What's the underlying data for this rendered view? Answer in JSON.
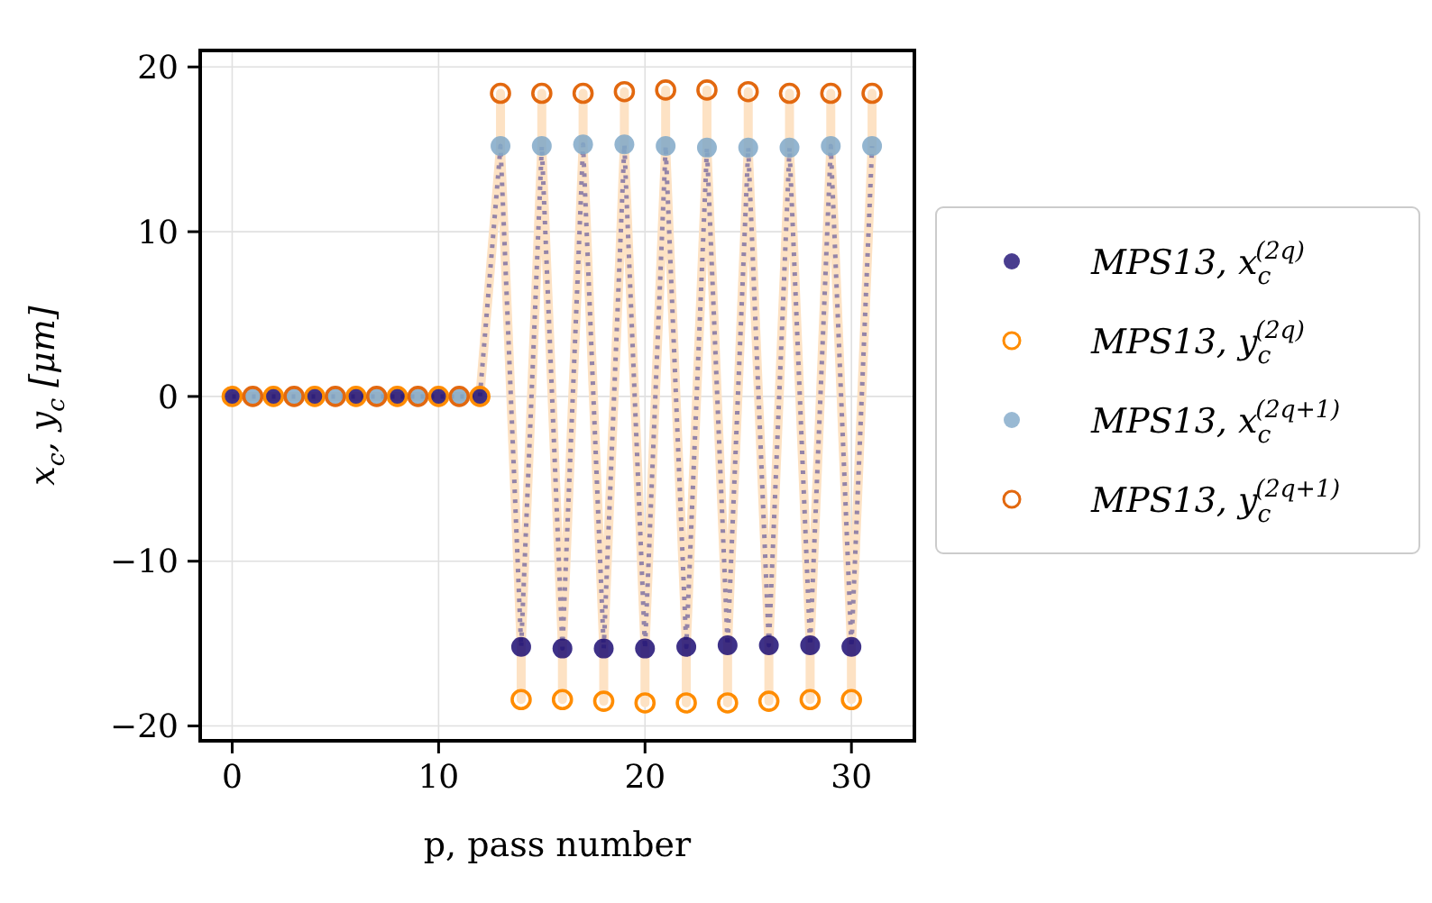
{
  "chart_data": {
    "type": "scatter",
    "xlabel": "p, pass number",
    "ylabel": "x$_{c}$, y$_{c}$ [μm]",
    "xlim": [
      -1.55,
      33.05
    ],
    "ylim": [
      -20.9,
      21
    ],
    "xticks": [
      0,
      10,
      20,
      30
    ],
    "yticks": [
      {
        "value": -20,
        "label": "−20"
      },
      {
        "value": -10,
        "label": "−10"
      },
      0,
      10,
      20
    ],
    "grid": true,
    "legend": "right",
    "series": [
      {
        "type": "line",
        "color": "#fde2c4",
        "line_style": "solid",
        "marker": "none",
        "x": [
          0,
          12,
          13,
          13,
          13,
          14,
          14,
          14,
          15,
          15,
          15,
          16,
          16,
          16,
          17,
          17,
          17,
          18,
          18,
          18,
          19,
          19,
          19,
          20,
          20,
          20,
          21,
          21,
          21,
          22,
          22,
          22,
          23,
          23,
          23,
          24,
          24,
          24,
          25,
          25,
          25,
          26,
          26,
          26,
          27,
          27,
          27,
          28,
          28,
          28,
          29,
          29,
          29,
          30,
          30,
          30,
          31,
          31
        ],
        "values": [
          0,
          0,
          15.2,
          18.4,
          15.2,
          -15.2,
          -18.4,
          -15.2,
          15.2,
          18.4,
          15.2,
          -15.3,
          -18.4,
          -15.3,
          15.3,
          18.4,
          15.3,
          -15.3,
          -18.5,
          -15.3,
          15.3,
          18.5,
          15.3,
          -15.3,
          -18.6,
          -15.3,
          15.2,
          18.6,
          15.2,
          -15.2,
          -18.6,
          -15.2,
          15.1,
          18.6,
          15.1,
          -15.1,
          -18.6,
          -15.1,
          15.1,
          18.5,
          15.1,
          -15.1,
          -18.5,
          -15.1,
          15.1,
          18.4,
          15.1,
          -15.1,
          -18.4,
          -15.1,
          15.2,
          18.4,
          15.2,
          -15.2,
          -18.4,
          -15.2,
          15.2,
          18.4
        ]
      },
      {
        "type": "line",
        "color": "#9484a8",
        "line_style": "dotted",
        "marker": "none",
        "x": [
          0,
          12,
          13,
          14,
          15,
          16,
          17,
          18,
          19,
          20,
          21,
          22,
          23,
          24,
          25,
          26,
          27,
          28,
          29,
          30,
          31
        ],
        "values": [
          0,
          0,
          15.2,
          -15.2,
          15.2,
          -15.3,
          15.3,
          -15.3,
          15.3,
          -15.3,
          15.2,
          -15.2,
          15.1,
          -15.1,
          15.1,
          -15.1,
          15.1,
          -15.1,
          15.2,
          -15.2,
          15.2
        ]
      },
      {
        "name": "MPS13, x$_{c}$$^{(2q)}$",
        "color": "#1c0d73",
        "marker": "circle",
        "x": [
          0,
          2,
          4,
          6,
          8,
          10,
          12,
          14,
          16,
          18,
          20,
          22,
          24,
          26,
          28,
          30
        ],
        "values": [
          0,
          0,
          0,
          0,
          0,
          0,
          0,
          -15.2,
          -15.3,
          -15.3,
          -15.3,
          -15.2,
          -15.1,
          -15.1,
          -15.1,
          -15.2
        ]
      },
      {
        "name": "MPS13, y$_{c}$$^{(2q)}$",
        "color": "#ff8c00",
        "marker": "circle",
        "x": [
          0,
          2,
          4,
          6,
          8,
          10,
          12,
          14,
          16,
          18,
          20,
          22,
          24,
          26,
          28,
          30
        ],
        "values": [
          0,
          0,
          0,
          0,
          0,
          0,
          0,
          -18.4,
          -18.4,
          -18.5,
          -18.6,
          -18.6,
          -18.6,
          -18.5,
          -18.4,
          -18.4
        ]
      },
      {
        "name": "MPS13, x$_{c}$$^{(2q+1)}$",
        "color": "#80a8c8",
        "marker": "circle",
        "x": [
          1,
          3,
          5,
          7,
          9,
          11,
          13,
          15,
          17,
          19,
          21,
          23,
          25,
          27,
          29,
          31
        ],
        "values": [
          0,
          0,
          0,
          0,
          0,
          0,
          15.2,
          15.2,
          15.3,
          15.3,
          15.2,
          15.1,
          15.1,
          15.1,
          15.2,
          15.2
        ]
      },
      {
        "name": "MPS13, y$_{c}$$^{(2q+1)}$",
        "color": "#e2680f",
        "marker": "circle",
        "x": [
          1,
          3,
          5,
          7,
          9,
          11,
          13,
          15,
          17,
          19,
          21,
          23,
          25,
          27,
          29,
          31
        ],
        "values": [
          0,
          0,
          0,
          0,
          0,
          0,
          18.4,
          18.4,
          18.4,
          18.5,
          18.6,
          18.6,
          18.5,
          18.4,
          18.4,
          18.4
        ]
      }
    ]
  }
}
